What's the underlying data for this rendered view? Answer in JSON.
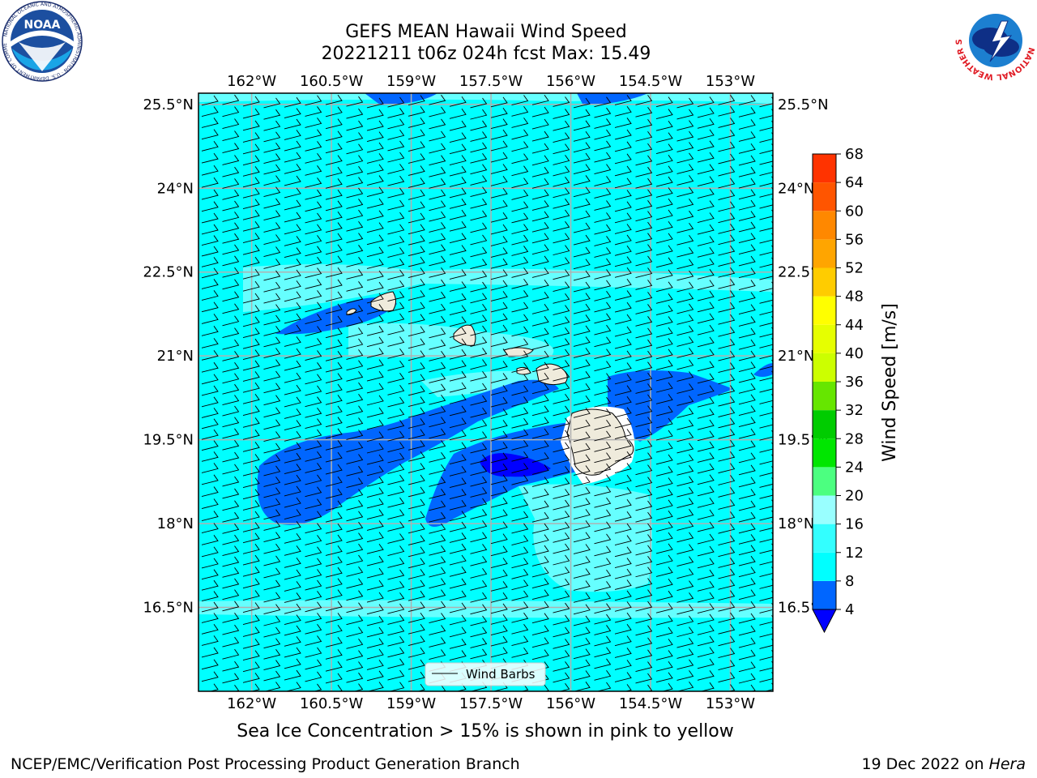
{
  "title_line1": "GEFS MEAN Hawaii Wind Speed",
  "title_line2": "20221211 t06z 024h fcst   Max: 15.49",
  "subtitle": "Sea Ice Concentration > 15% is shown in pink to yellow",
  "footer_left": "NCEP/EMC/Verification Post Processing Product Generation Branch",
  "footer_right_prefix": "19 Dec 2022 on ",
  "footer_right_host": "Hera",
  "legend_label": "Wind Barbs",
  "colorbar": {
    "label": "Wind Speed [m/s]",
    "ticks": [
      "4",
      "8",
      "12",
      "16",
      "20",
      "24",
      "28",
      "32",
      "36",
      "40",
      "44",
      "48",
      "52",
      "56",
      "60",
      "64",
      "68"
    ],
    "colors": [
      "#0066ff",
      "#00ffff",
      "#33ffff",
      "#99ffff",
      "#4cff80",
      "#00e600",
      "#00cc00",
      "#66e600",
      "#ccff00",
      "#e6ff00",
      "#ffff00",
      "#ffcc00",
      "#ffa500",
      "#ff8800",
      "#ff5500",
      "#ff3300",
      "#ff0000"
    ],
    "under_color": "#0000ff"
  },
  "map": {
    "lon_labels": [
      "162°W",
      "160.5°W",
      "159°W",
      "157.5°W",
      "156°W",
      "154.5°W",
      "153°W"
    ],
    "lat_labels": [
      "25.5°N",
      "24°N",
      "22.5°N",
      "21°N",
      "19.5°N",
      "18°N",
      "16.5°N"
    ],
    "lon_values": [
      -162,
      -160.5,
      -159,
      -157.5,
      -156,
      -154.5,
      -153
    ],
    "lat_values": [
      25.5,
      24,
      22.5,
      21,
      19.5,
      18,
      16.5
    ],
    "lon_range": [
      -163,
      -152.2
    ],
    "lat_range": [
      15,
      25.7
    ],
    "ocean_color": "#00ffff",
    "land_color": "#efebdc",
    "fill_colors": {
      "4-8": "#0066ff",
      "8-12": "#00ffff",
      "12-16": "#66ffff",
      "<4": "#0000ff"
    }
  },
  "logos": {
    "noaa": "NOAA",
    "noaa_ring": "NATIONAL OCEANIC AND ATMOSPHERIC ADMINISTRATION · U.S. DEPARTMENT OF COMMERCE",
    "nws_ring": "NATIONAL WEATHER SERVICE"
  }
}
